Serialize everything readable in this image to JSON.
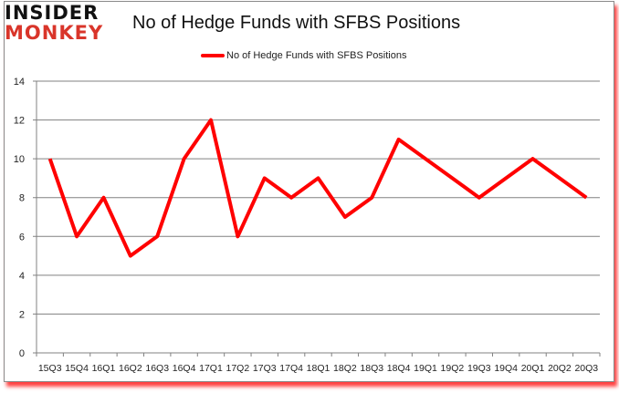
{
  "logo": {
    "line1": "INSIDER",
    "line2": "MONKEY"
  },
  "title": "No of Hedge Funds with SFBS Positions",
  "legend": {
    "label": "No of Hedge Funds with SFBS Positions",
    "color": "#ff0000"
  },
  "colors": {
    "line": "#ff0000",
    "grid": "#808080",
    "axis": "#808080",
    "shadow": "#ff0000"
  },
  "chart_data": {
    "type": "line",
    "title": "No of Hedge Funds with SFBS Positions",
    "xlabel": "",
    "ylabel": "",
    "ylim": [
      0,
      14
    ],
    "yticks": [
      0,
      2,
      4,
      6,
      8,
      10,
      12,
      14
    ],
    "grid": true,
    "legend_position": "top",
    "categories": [
      "15Q3",
      "15Q4",
      "16Q1",
      "16Q2",
      "16Q3",
      "16Q4",
      "17Q1",
      "17Q2",
      "17Q3",
      "17Q4",
      "18Q1",
      "18Q2",
      "18Q3",
      "18Q4",
      "19Q1",
      "19Q2",
      "19Q3",
      "19Q4",
      "20Q1",
      "20Q2",
      "20Q3"
    ],
    "series": [
      {
        "name": "No of Hedge Funds with SFBS Positions",
        "color": "#ff0000",
        "values": [
          10,
          6,
          8,
          5,
          6,
          10,
          12,
          6,
          9,
          8,
          9,
          7,
          8,
          11,
          10,
          9,
          8,
          9,
          10,
          9,
          8
        ]
      }
    ]
  }
}
